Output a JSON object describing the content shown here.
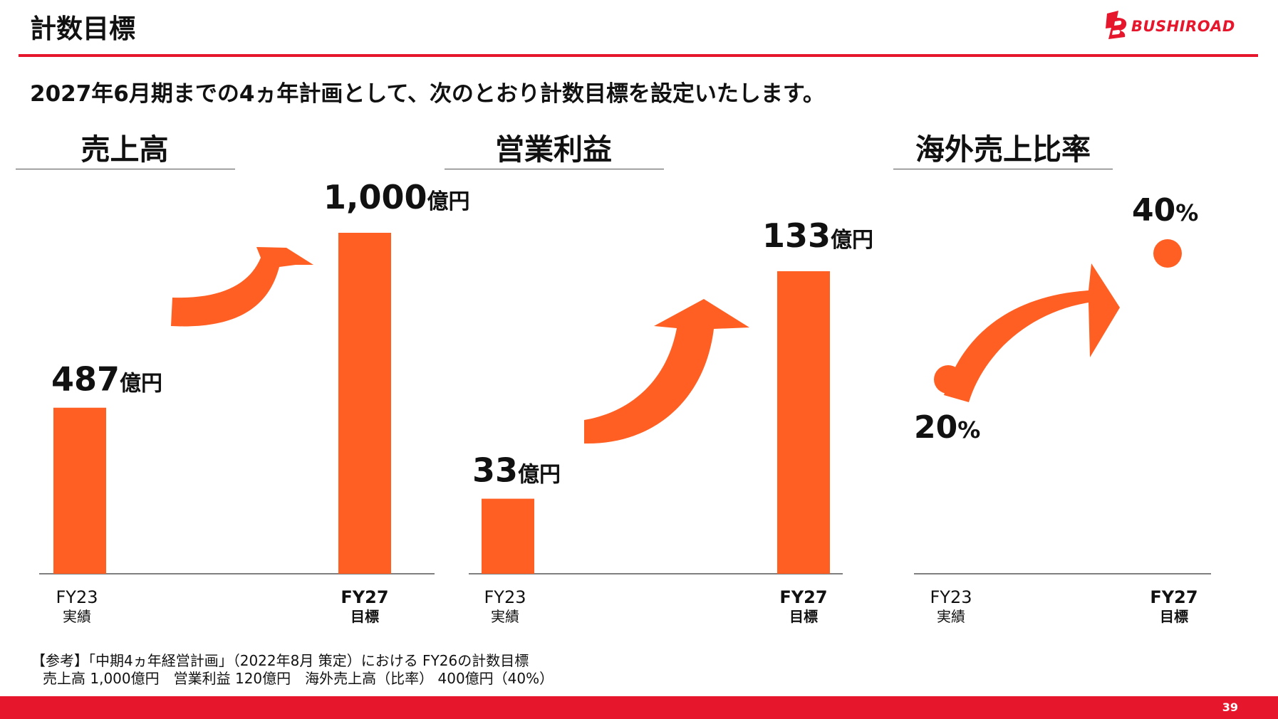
{
  "header": {
    "title": "計数目標",
    "logo_text": "BUSHIROAD",
    "accent": "#e6162d"
  },
  "subtitle": "2027年6月期までの4ヵ年計画として、次のとおり計数目標を設定いたします。",
  "chart_data": [
    {
      "type": "bar",
      "title": "売上高",
      "categories": [
        "FY23",
        "FY27"
      ],
      "category_notes": [
        "実績",
        "目標"
      ],
      "values": [
        487,
        1000
      ],
      "value_labels": [
        "487",
        "1,000"
      ],
      "unit": "億円",
      "color": "#ff5f22"
    },
    {
      "type": "bar",
      "title": "営業利益",
      "categories": [
        "FY23",
        "FY27"
      ],
      "category_notes": [
        "実績",
        "目標"
      ],
      "values": [
        33,
        133
      ],
      "value_labels": [
        "33",
        "133"
      ],
      "unit": "億円",
      "color": "#ff5f22"
    },
    {
      "type": "scatter",
      "title": "海外売上比率",
      "categories": [
        "FY23",
        "FY27"
      ],
      "category_notes": [
        "実績",
        "目標"
      ],
      "values": [
        20,
        40
      ],
      "value_labels": [
        "20",
        "40"
      ],
      "unit": "%",
      "color": "#ff5f22"
    }
  ],
  "footnote": {
    "line1": "【参考】「中期4ヵ年経営計画」（2022年8月 策定）における FY26の計数目標",
    "line2": "売上高 1,000億円　営業利益 120億円　海外売上高（比率） 400億円（40%）"
  },
  "page_number": "39"
}
